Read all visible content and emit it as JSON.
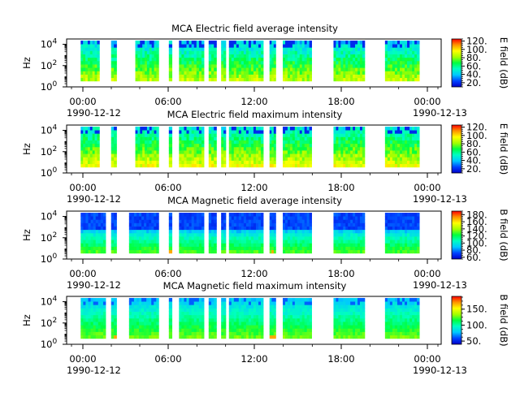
{
  "chart_data": [
    {
      "type": "heatmap",
      "title": "MCA  Electric field average intensity",
      "ylabel": "Hz",
      "colorbar_label": "E field (dB)",
      "colorbar_ticks": [
        "20.",
        "40.",
        "60.",
        "80.",
        "100.",
        "120."
      ],
      "colorbar_range": [
        10,
        125
      ],
      "y_scale": "log",
      "y_ticks": [
        "10^0",
        "10^2",
        "10^4"
      ],
      "y_ticks_exp": [
        "0",
        "2",
        "4"
      ],
      "x_ticks": [
        "00:00",
        "06:00",
        "12:00",
        "18:00",
        "00:00"
      ],
      "x_start_date": "1990-12-12",
      "x_end_date": "1990-12-13",
      "field": "E",
      "mode": "average",
      "data_intervals_hours": [
        [
          0.9,
          2.1
        ],
        [
          2.85,
          3.2
        ],
        [
          4.4,
          5.9
        ],
        [
          6.55,
          6.75
        ],
        [
          7.2,
          8.8
        ],
        [
          9.1,
          9.6
        ],
        [
          9.9,
          10.2
        ],
        [
          10.4,
          12.6
        ],
        [
          13.0,
          13.4
        ],
        [
          13.85,
          15.7
        ],
        [
          17.1,
          19.1
        ],
        [
          20.4,
          22.6
        ]
      ]
    },
    {
      "type": "heatmap",
      "title": "MCA  Electric field maximum intensity",
      "ylabel": "Hz",
      "colorbar_label": "E field (dB)",
      "colorbar_ticks": [
        "20.",
        "40.",
        "60.",
        "80.",
        "100.",
        "120."
      ],
      "colorbar_range": [
        10,
        125
      ],
      "y_scale": "log",
      "y_ticks": [
        "10^0",
        "10^2",
        "10^4"
      ],
      "y_ticks_exp": [
        "0",
        "2",
        "4"
      ],
      "x_ticks": [
        "00:00",
        "06:00",
        "12:00",
        "18:00",
        "00:00"
      ],
      "x_start_date": "1990-12-12",
      "x_end_date": "1990-12-13",
      "field": "E",
      "mode": "maximum",
      "data_intervals_hours": [
        [
          0.9,
          2.1
        ],
        [
          2.85,
          3.2
        ],
        [
          4.4,
          5.9
        ],
        [
          6.55,
          6.75
        ],
        [
          7.2,
          8.8
        ],
        [
          9.1,
          9.6
        ],
        [
          9.9,
          10.2
        ],
        [
          10.4,
          12.6
        ],
        [
          13.0,
          13.4
        ],
        [
          13.85,
          15.7
        ],
        [
          17.1,
          19.1
        ],
        [
          20.4,
          22.6
        ]
      ]
    },
    {
      "type": "heatmap",
      "title": "MCA  Magnetic field average intensity",
      "ylabel": "Hz",
      "colorbar_label": "B field (dB)",
      "colorbar_ticks": [
        "60.",
        "80.",
        "100.",
        "120.",
        "140.",
        "160.",
        "180."
      ],
      "colorbar_range": [
        55,
        190
      ],
      "y_scale": "log",
      "y_ticks": [
        "10^0",
        "10^2",
        "10^4"
      ],
      "y_ticks_exp": [
        "0",
        "2",
        "4"
      ],
      "x_ticks": [
        "00:00",
        "06:00",
        "12:00",
        "18:00",
        "00:00"
      ],
      "x_start_date": "1990-12-12",
      "x_end_date": "1990-12-13",
      "field": "B",
      "mode": "average",
      "data_intervals_hours": [
        [
          0.9,
          2.5
        ],
        [
          2.85,
          3.2
        ],
        [
          4.0,
          5.9
        ],
        [
          6.55,
          6.75
        ],
        [
          7.2,
          8.8
        ],
        [
          9.1,
          9.6
        ],
        [
          9.9,
          10.2
        ],
        [
          10.4,
          12.6
        ],
        [
          13.0,
          13.4
        ],
        [
          13.85,
          15.7
        ],
        [
          17.1,
          19.1
        ],
        [
          20.4,
          22.6
        ]
      ]
    },
    {
      "type": "heatmap",
      "title": "MCA  Magnetic field maximum intensity",
      "ylabel": "Hz",
      "colorbar_label": "B field (dB)",
      "colorbar_ticks": [
        "50.",
        "100.",
        "150."
      ],
      "colorbar_range": [
        40,
        190
      ],
      "y_scale": "log",
      "y_ticks": [
        "10^0",
        "10^2",
        "10^4"
      ],
      "y_ticks_exp": [
        "0",
        "2",
        "4"
      ],
      "x_ticks": [
        "00:00",
        "06:00",
        "12:00",
        "18:00",
        "00:00"
      ],
      "x_start_date": "1990-12-12",
      "x_end_date": "1990-12-13",
      "field": "B",
      "mode": "maximum",
      "data_intervals_hours": [
        [
          0.9,
          2.5
        ],
        [
          2.85,
          3.2
        ],
        [
          4.0,
          5.9
        ],
        [
          6.55,
          6.75
        ],
        [
          7.2,
          8.8
        ],
        [
          9.1,
          9.6
        ],
        [
          9.9,
          10.2
        ],
        [
          10.4,
          12.6
        ],
        [
          13.0,
          13.4
        ],
        [
          13.85,
          15.7
        ],
        [
          17.1,
          19.1
        ],
        [
          20.4,
          22.6
        ]
      ]
    }
  ]
}
